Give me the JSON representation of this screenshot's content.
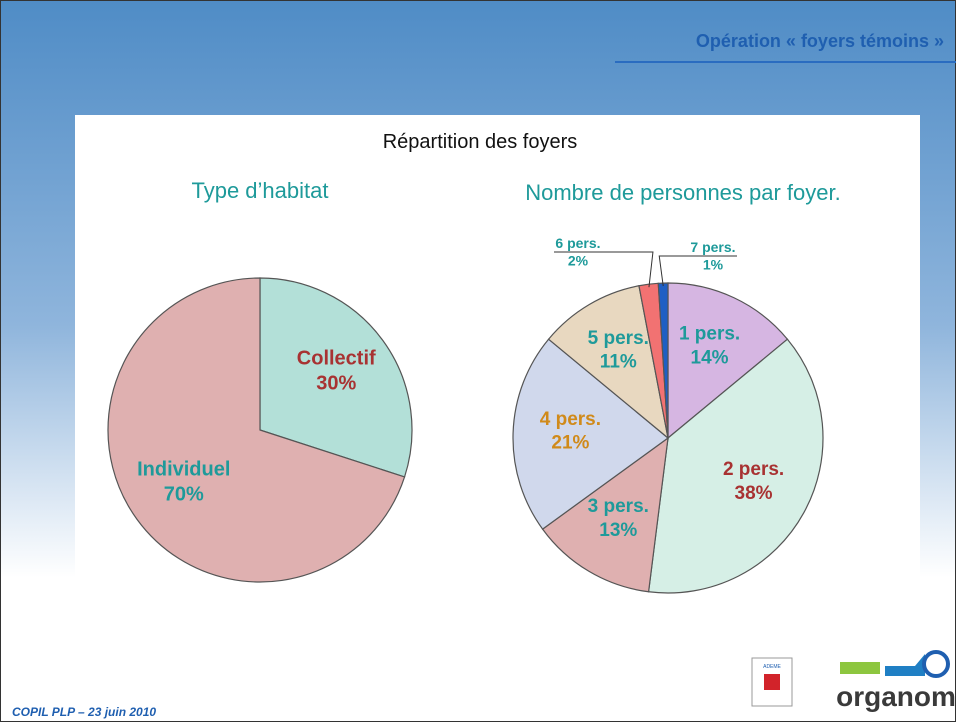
{
  "header": "Opération « foyers témoins »",
  "main_title": "Répartition des foyers",
  "footer": "COPIL PLP – 23 juin 2010",
  "logos": [
    "ADEME",
    "organom"
  ],
  "chart_data": [
    {
      "type": "pie",
      "title": "Type d’habitat",
      "categories": [
        "Collectif",
        "Individuel"
      ],
      "values": [
        30,
        70
      ],
      "value_labels": [
        "30%",
        "70%"
      ],
      "colors": [
        "#b3e0d8",
        "#dfb0b0"
      ],
      "label_colors": [
        "#a83232",
        "#1e9a9a"
      ]
    },
    {
      "type": "pie",
      "title": "Nombre de personnes par foyer.",
      "categories": [
        "1 pers.",
        "2 pers.",
        "3 pers.",
        "4 pers.",
        "5 pers.",
        "6 pers.",
        "7 pers."
      ],
      "values": [
        14,
        38,
        13,
        21,
        11,
        2,
        1
      ],
      "value_labels": [
        "14%",
        "38%",
        "13%",
        "21%",
        "11%",
        "2%",
        "1%"
      ],
      "colors": [
        "#d6b6e2",
        "#d6efe6",
        "#dfb0b0",
        "#d0d8ec",
        "#e8d8c0",
        "#f27272",
        "#1f5fc4"
      ],
      "label_colors": [
        "#1e9a9a",
        "#a83232",
        "#1e9a9a",
        "#d08a1a",
        "#1e9a9a",
        "#1e9a9a",
        "#1e9a9a"
      ]
    }
  ]
}
